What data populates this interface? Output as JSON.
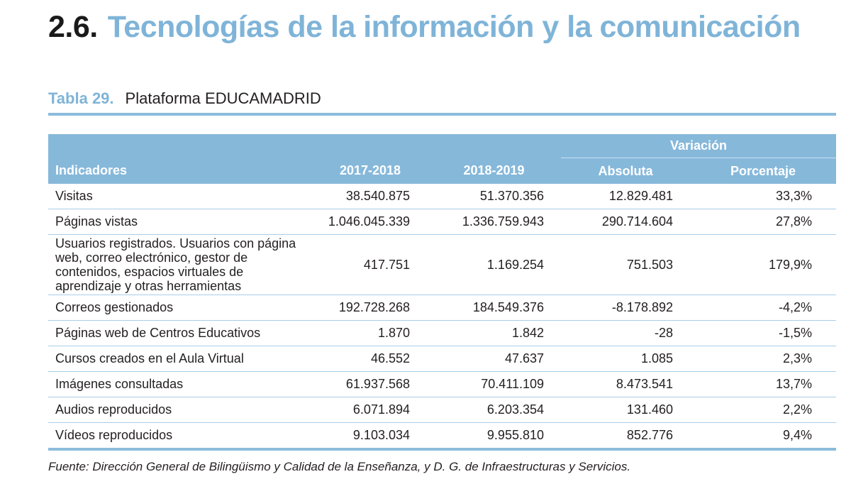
{
  "section": {
    "number": "2.6.",
    "title": "Tecnologías de la información y la comunicación"
  },
  "caption": {
    "label": "Tabla 29.",
    "name": "Plataforma EDUCAMADRID"
  },
  "table": {
    "group_header": "Variación",
    "headers": [
      "Indicadores",
      "2017-2018",
      "2018-2019",
      "Absoluta",
      "Porcentaje"
    ],
    "rows": [
      [
        "Visitas",
        "38.540.875",
        "51.370.356",
        "12.829.481",
        "33,3%"
      ],
      [
        "Páginas vistas",
        "1.046.045.339",
        "1.336.759.943",
        "290.714.604",
        "27,8%"
      ],
      [
        "Usuarios registrados. Usuarios con página web, correo electrónico, gestor de contenidos, espacios virtuales de aprendizaje y otras herramientas",
        "417.751",
        "1.169.254",
        "751.503",
        "179,9%"
      ],
      [
        "Correos gestionados",
        "192.728.268",
        "184.549.376",
        "-8.178.892",
        "-4,2%"
      ],
      [
        "Páginas web de Centros Educativos",
        "1.870",
        "1.842",
        "-28",
        "-1,5%"
      ],
      [
        "Cursos creados en el Aula Virtual",
        "46.552",
        "47.637",
        "1.085",
        "2,3%"
      ],
      [
        "Imágenes consultadas",
        "61.937.568",
        "70.411.109",
        "8.473.541",
        "13,7%"
      ],
      [
        "Audios reproducidos",
        "6.071.894",
        "6.203.354",
        "131.460",
        "2,2%"
      ],
      [
        "Vídeos reproducidos",
        "9.103.034",
        "9.955.810",
        "852.776",
        "9,4%"
      ]
    ]
  },
  "source": "Fuente: Dirección General de Bilingüismo y Calidad de la Enseñanza, y D. G. de Infraestructuras y Servicios."
}
